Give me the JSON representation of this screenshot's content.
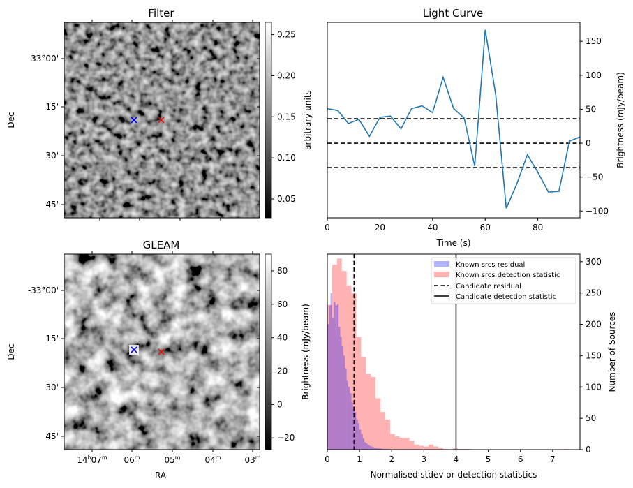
{
  "chart_data": [
    {
      "type": "heatmap",
      "panel": "top-left",
      "title": "Filter",
      "xlabel": "",
      "ylabel": "Dec",
      "ytick_labels": [
        "-33°00'",
        "15'",
        "30'",
        "45'"
      ],
      "xtick_labels": [],
      "colormap": "gray",
      "colorbar": {
        "label": "arbitrary units",
        "range": [
          0.027,
          0.265
        ],
        "ticks": [
          0.05,
          0.1,
          0.15,
          0.2,
          0.25
        ],
        "tick_labels": [
          "0.05",
          "0.10",
          "0.15",
          "0.20",
          "0.25"
        ]
      },
      "markers": [
        {
          "name": "known source",
          "symbol": "x",
          "color": "#0000ff"
        },
        {
          "name": "candidate",
          "symbol": "x",
          "color": "#ff0000"
        }
      ]
    },
    {
      "type": "line",
      "panel": "top-right",
      "title": "Light Curve",
      "xlabel": "Time (s)",
      "ylabel": "Brightness (mJy/beam)",
      "xlim": [
        0,
        96
      ],
      "ylim": [
        -110,
        178
      ],
      "xticks": [
        0,
        20,
        40,
        60,
        80
      ],
      "yticks": [
        -100,
        -50,
        0,
        50,
        100,
        150
      ],
      "ytick_labels": [
        "−100",
        "−50",
        "0",
        "50",
        "100",
        "150"
      ],
      "x": [
        0,
        4,
        8,
        12,
        16,
        20,
        24,
        28,
        32,
        36,
        40,
        44,
        48,
        52,
        56,
        60,
        64,
        68,
        72,
        76,
        80,
        84,
        88,
        92,
        96
      ],
      "series": [
        {
          "name": "light curve",
          "color": "#1f77b4",
          "values": [
            51,
            48,
            29,
            35,
            10,
            38,
            40,
            21,
            51,
            55,
            45,
            97,
            51,
            37,
            -34,
            167,
            71,
            -96,
            -60,
            -17,
            -43,
            -72,
            -71,
            3,
            9
          ]
        }
      ],
      "hlines": [
        {
          "y": 36,
          "style": "dashed",
          "color": "#000000"
        },
        {
          "y": 0,
          "style": "dashed",
          "color": "#000000"
        },
        {
          "y": -36,
          "style": "dashed",
          "color": "#000000"
        }
      ],
      "grid": false
    },
    {
      "type": "heatmap",
      "panel": "bottom-left",
      "title": "GLEAM",
      "xlabel": "RA",
      "ylabel": "Dec",
      "ytick_labels": [
        "-33°00'",
        "15'",
        "30'",
        "45'"
      ],
      "xtick_labels": [
        "14h07m",
        "06m",
        "05m",
        "04m",
        "03m"
      ],
      "colormap": "gray",
      "colorbar": {
        "label": "Brightness (mJy/beam)",
        "range": [
          -27,
          90
        ],
        "ticks": [
          -20,
          0,
          20,
          40,
          60,
          80
        ],
        "tick_labels": [
          "−20",
          "0",
          "20",
          "40",
          "60",
          "80"
        ]
      },
      "markers": [
        {
          "name": "known source",
          "symbol": "x",
          "color": "#0000ff"
        },
        {
          "name": "candidate",
          "symbol": "x",
          "color": "#ff0000"
        }
      ]
    },
    {
      "type": "bar",
      "panel": "bottom-right",
      "title": "",
      "xlabel": "Normalised stdev or detection statistics",
      "ylabel_left": "Brightness (mJy/beam)",
      "ylabel": "Number of Sources",
      "xlim": [
        0,
        7.85
      ],
      "ylim": [
        0,
        312
      ],
      "xticks": [
        0,
        1,
        2,
        3,
        4,
        5,
        6,
        7
      ],
      "yticks": [
        0,
        50,
        100,
        150,
        200,
        250,
        300
      ],
      "legend_position": "top-right",
      "series": [
        {
          "name": "Known srcs residual",
          "color": "#0000ff",
          "alpha": 0.3,
          "bin_width": 0.05,
          "bin_start": 0.0,
          "values": [
            200,
            230,
            250,
            210,
            236,
            230,
            232,
            196,
            180,
            165,
            150,
            130,
            110,
            100,
            90,
            75,
            68,
            60,
            48,
            42,
            32,
            25,
            18,
            12,
            10,
            8,
            6,
            5,
            4,
            3,
            3,
            2,
            2,
            2,
            1,
            1,
            1,
            1,
            0,
            1
          ]
        },
        {
          "name": "Known srcs detection statistic",
          "color": "#ff0000",
          "alpha": 0.3,
          "bin_width": 0.15,
          "bin_start": 0.0,
          "values": [
            231,
            295,
            305,
            285,
            262,
            250,
            180,
            148,
            121,
            116,
            82,
            60,
            48,
            25,
            21,
            19,
            19,
            14,
            8,
            6,
            5,
            8,
            5,
            3,
            1,
            0,
            2,
            1,
            1,
            1,
            0,
            0,
            0,
            0,
            0,
            0,
            0,
            0,
            0,
            0,
            0,
            0,
            0,
            0,
            0,
            0,
            0,
            0,
            0,
            1
          ]
        }
      ],
      "vlines": [
        {
          "name": "Candidate residual",
          "x": 0.83,
          "style": "dashed",
          "color": "#000000"
        },
        {
          "name": "Candidate detection statistic",
          "x": 4.0,
          "style": "solid",
          "color": "#000000"
        }
      ],
      "legend": [
        "Known srcs residual",
        "Known srcs detection statistic",
        "Candidate residual",
        "Candidate detection statistic"
      ]
    }
  ]
}
